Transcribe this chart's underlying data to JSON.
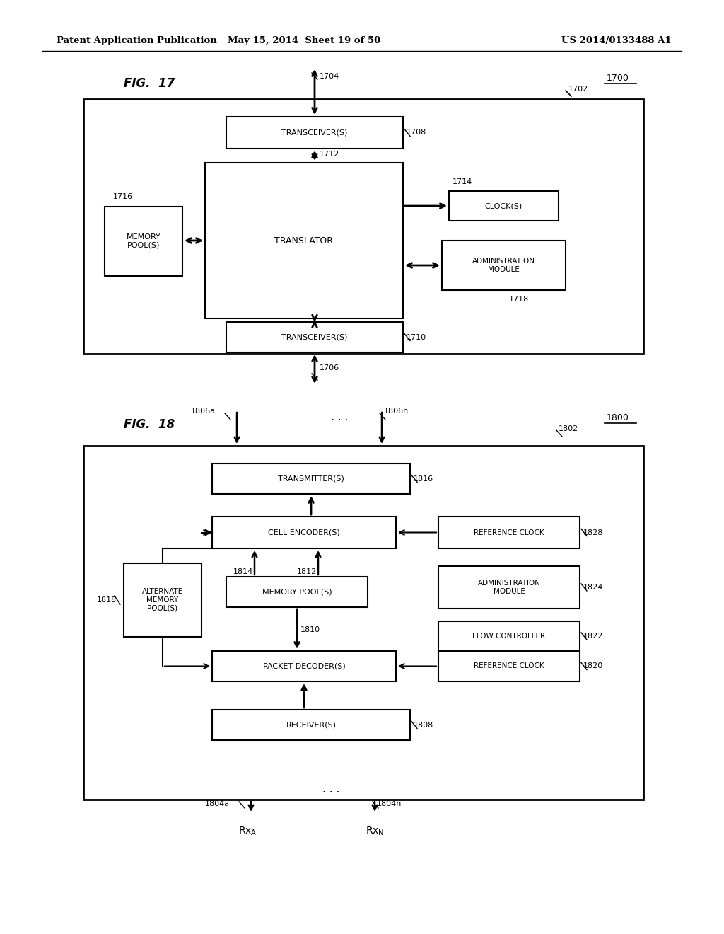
{
  "header_left": "Patent Application Publication",
  "header_mid": "May 15, 2014  Sheet 19 of 50",
  "header_right": "US 2014/0133488 A1",
  "fig17_label": "FIG.  17",
  "fig18_label": "FIG.  18",
  "bg_color": "#ffffff"
}
